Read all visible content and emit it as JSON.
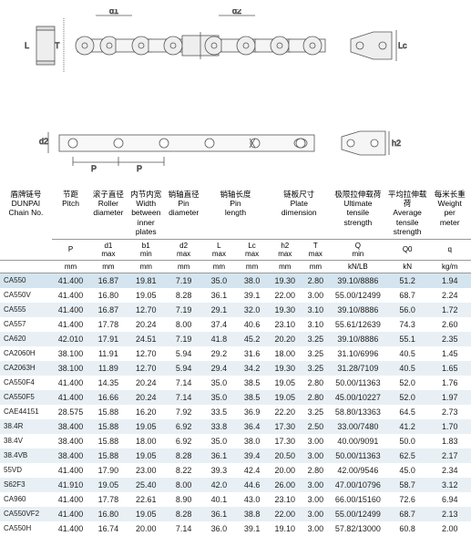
{
  "diagram_labels": {
    "T": "T",
    "d1": "d1",
    "d2": "d2",
    "L": "L",
    "Lc": "Lc",
    "d2_bottom": "d2",
    "h2": "h2",
    "P": "P",
    "P2": "P"
  },
  "headers": {
    "row1": [
      "盾牌链号\nDUNPAI\nChain No.",
      "节距\nPitch",
      "滚子直径\nRoller\ndiameter",
      "内节内宽\nWidth\nbetween\ninner plates",
      "销轴直径\nPin\ndiameter",
      "销轴长度\nPin\nlength",
      "链板尺寸\nPlate\ndimension",
      "极限拉伸载荷\nUltimate\ntensile\nstrength",
      "平均拉伸载荷\nAverage\ntensile\nstrength",
      "每米长重\nWeight\nper\nmeter"
    ],
    "row2": [
      "",
      "P",
      "d1\nmax",
      "b1\nmin",
      "d2\nmax",
      "L\nmax",
      "Lc\nmax",
      "h2\nmax",
      "T\nmax",
      "Q\nmin",
      "Q0",
      "q"
    ],
    "row3": [
      "",
      "mm",
      "mm",
      "mm",
      "mm",
      "mm",
      "mm",
      "mm",
      "mm",
      "kN/LB",
      "kN",
      "kg/m"
    ]
  },
  "rows": [
    [
      "CA550",
      "41.400",
      "16.87",
      "19.81",
      "7.19",
      "35.0",
      "38.0",
      "19.30",
      "2.80",
      "39.10/8886",
      "51.2",
      "1.94"
    ],
    [
      "CA550V",
      "41.400",
      "16.80",
      "19.05",
      "8.28",
      "36.1",
      "39.1",
      "22.00",
      "3.00",
      "55.00/12499",
      "68.7",
      "2.24"
    ],
    [
      "CA555",
      "41.400",
      "16.87",
      "12.70",
      "7.19",
      "29.1",
      "32.0",
      "19.30",
      "3.10",
      "39.10/8886",
      "56.0",
      "1.72"
    ],
    [
      "CA557",
      "41.400",
      "17.78",
      "20.24",
      "8.00",
      "37.4",
      "40.6",
      "23.10",
      "3.10",
      "55.61/12639",
      "74.3",
      "2.60"
    ],
    [
      "CA620",
      "42.010",
      "17.91",
      "24.51",
      "7.19",
      "41.8",
      "45.2",
      "20.20",
      "3.25",
      "39.10/8886",
      "55.1",
      "2.35"
    ],
    [
      "CA2060H",
      "38.100",
      "11.91",
      "12.70",
      "5.94",
      "29.2",
      "31.6",
      "18.00",
      "3.25",
      "31.10/6996",
      "40.5",
      "1.45"
    ],
    [
      "CA2063H",
      "38.100",
      "11.89",
      "12.70",
      "5.94",
      "29.4",
      "34.2",
      "19.30",
      "3.25",
      "31.28/7109",
      "40.5",
      "1.65"
    ],
    [
      "CA550F4",
      "41.400",
      "14.35",
      "20.24",
      "7.14",
      "35.0",
      "38.5",
      "19.05",
      "2.80",
      "50.00/11363",
      "52.0",
      "1.76"
    ],
    [
      "CA550F5",
      "41.400",
      "16.66",
      "20.24",
      "7.14",
      "35.0",
      "38.5",
      "19.05",
      "2.80",
      "45.00/10227",
      "52.0",
      "1.97"
    ],
    [
      "CAE44151",
      "28.575",
      "15.88",
      "16.20",
      "7.92",
      "33.5",
      "36.9",
      "22.20",
      "3.25",
      "58.80/13363",
      "64.5",
      "2.73"
    ],
    [
      "38.4R",
      "38.400",
      "15.88",
      "19.05",
      "6.92",
      "33.8",
      "36.4",
      "17.30",
      "2.50",
      "33.00/7480",
      "41.2",
      "1.70"
    ],
    [
      "38.4V",
      "38.400",
      "15.88",
      "18.00",
      "6.92",
      "35.0",
      "38.0",
      "17.30",
      "3.00",
      "40.00/9091",
      "50.0",
      "1.83"
    ],
    [
      "38.4VB",
      "38.400",
      "15.88",
      "19.05",
      "8.28",
      "36.1",
      "39.4",
      "20.50",
      "3.00",
      "50.00/11363",
      "62.5",
      "2.17"
    ],
    [
      "55VD",
      "41.400",
      "17.90",
      "23.00",
      "8.22",
      "39.3",
      "42.4",
      "20.00",
      "2.80",
      "42.00/9546",
      "45.0",
      "2.34"
    ],
    [
      "S62F3",
      "41.910",
      "19.05",
      "25.40",
      "8.00",
      "42.0",
      "44.6",
      "26.00",
      "3.00",
      "47.00/10796",
      "58.7",
      "3.12"
    ],
    [
      "CA960",
      "41.400",
      "17.78",
      "22.61",
      "8.90",
      "40.1",
      "43.0",
      "23.10",
      "3.00",
      "66.00/15160",
      "72.6",
      "6.94"
    ],
    [
      "CA550VF2",
      "41.400",
      "16.80",
      "19.05",
      "8.28",
      "36.1",
      "38.8",
      "22.00",
      "3.00",
      "55.00/12499",
      "68.7",
      "2.13"
    ],
    [
      "CA550H",
      "41.400",
      "16.74",
      "20.00",
      "7.14",
      "36.0",
      "39.1",
      "19.10",
      "3.00",
      "57.82/13000",
      "60.8",
      "2.00"
    ]
  ]
}
